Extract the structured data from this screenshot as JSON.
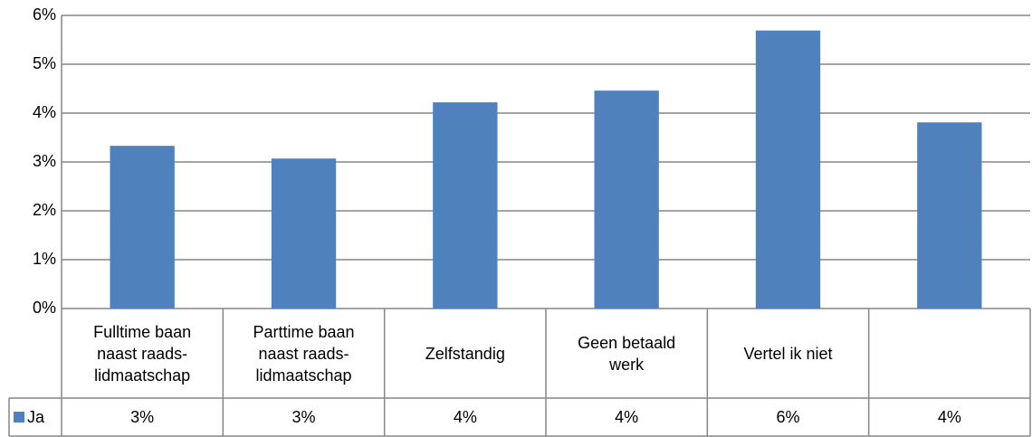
{
  "chart_data": {
    "type": "bar",
    "categories": [
      "Fulltime baan naast raads-lidmaatschap",
      "Parttime baan naast raads-lidmaatschap",
      "Zelfstandig",
      "Geen betaald werk",
      "Vertel ik niet",
      null
    ],
    "series": [
      {
        "name": "Ja",
        "color": "#4f81bd",
        "values": [
          3.33,
          3.07,
          4.22,
          4.46,
          5.69,
          3.81
        ],
        "value_labels": [
          "3%",
          "3%",
          "4%",
          "4%",
          "6%",
          "4%"
        ]
      }
    ],
    "ylim": [
      0,
      6
    ],
    "yticks": [
      {
        "value": 0,
        "label": "0%"
      },
      {
        "value": 1,
        "label": "1%"
      },
      {
        "value": 2,
        "label": "2%"
      },
      {
        "value": 3,
        "label": "3%"
      },
      {
        "value": 4,
        "label": "4%"
      },
      {
        "value": 5,
        "label": "5%"
      },
      {
        "value": 6,
        "label": "6%"
      }
    ],
    "grid": true,
    "legend": "data-table"
  }
}
